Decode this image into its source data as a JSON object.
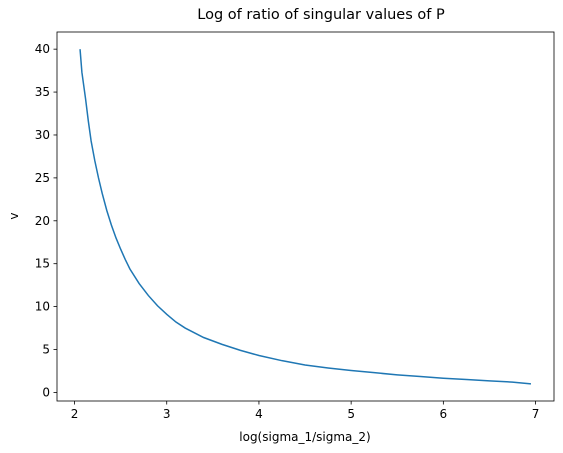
{
  "chart_data": {
    "type": "line",
    "title": "Log of ratio of singular values of P",
    "xlabel": "log(sigma_1/sigma_2)",
    "ylabel": "v",
    "xlim": [
      1.81,
      7.2
    ],
    "ylim": [
      -1.0,
      42.0
    ],
    "x_ticks": [
      2,
      3,
      4,
      5,
      6,
      7
    ],
    "y_ticks": [
      0,
      5,
      10,
      15,
      20,
      25,
      30,
      35,
      40
    ],
    "grid": false,
    "line_color": "#1f77b4",
    "series": [
      {
        "x": [
          2.06,
          2.08,
          2.12,
          2.15,
          2.18,
          2.22,
          2.26,
          2.3,
          2.35,
          2.4,
          2.45,
          2.5,
          2.55,
          2.6,
          2.7,
          2.8,
          2.9,
          3.0,
          3.1,
          3.2,
          3.4,
          3.6,
          3.8,
          4.0,
          4.25,
          4.5,
          4.75,
          5.0,
          5.25,
          5.5,
          5.75,
          6.0,
          6.25,
          6.5,
          6.75,
          6.95
        ],
        "y": [
          40.0,
          37.3,
          34.2,
          31.6,
          29.3,
          27.0,
          25.0,
          23.2,
          21.2,
          19.5,
          18.0,
          16.7,
          15.5,
          14.4,
          12.7,
          11.3,
          10.1,
          9.1,
          8.2,
          7.5,
          6.4,
          5.6,
          4.9,
          4.3,
          3.7,
          3.2,
          2.85,
          2.55,
          2.3,
          2.05,
          1.85,
          1.65,
          1.5,
          1.35,
          1.2,
          1.0
        ]
      }
    ]
  }
}
